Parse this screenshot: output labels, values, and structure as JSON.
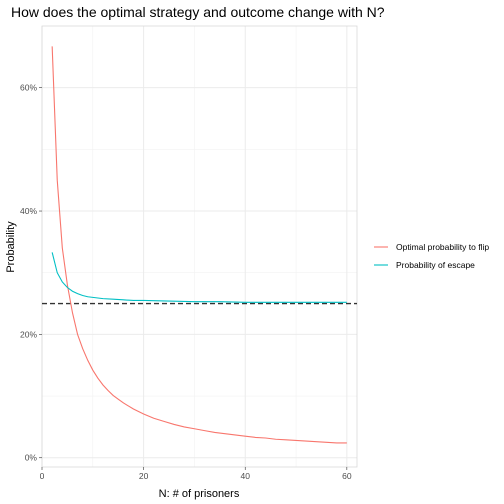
{
  "chart_data": {
    "type": "line",
    "title": "How does the optimal strategy and outcome change with N?",
    "xlabel": "N: # of prisoners",
    "ylabel": "Probability",
    "xlim": [
      0,
      62
    ],
    "ylim": [
      -0.015,
      0.7
    ],
    "x_ticks": [
      0,
      20,
      40,
      60
    ],
    "x_tick_labels": [
      "0",
      "20",
      "40",
      "60"
    ],
    "y_ticks": [
      0,
      0.2,
      0.4,
      0.6
    ],
    "y_tick_labels": [
      "0%",
      "20%",
      "40%",
      "60%"
    ],
    "grid": true,
    "legend_position": "right",
    "reference_line": {
      "y": 0.25,
      "style": "dashed",
      "color": "#333333"
    },
    "series": [
      {
        "name": "Optimal probability to flip",
        "color": "#F8766D",
        "x": [
          2,
          3,
          4,
          5,
          6,
          7,
          8,
          9,
          10,
          11,
          12,
          13,
          14,
          15,
          16,
          17,
          18,
          19,
          20,
          22,
          24,
          26,
          28,
          30,
          32,
          34,
          36,
          38,
          40,
          42,
          44,
          46,
          48,
          50,
          52,
          54,
          56,
          58,
          60
        ],
        "values": [
          0.667,
          0.45,
          0.34,
          0.28,
          0.235,
          0.2,
          0.177,
          0.158,
          0.142,
          0.129,
          0.118,
          0.109,
          0.101,
          0.095,
          0.089,
          0.084,
          0.079,
          0.075,
          0.071,
          0.064,
          0.059,
          0.054,
          0.05,
          0.047,
          0.044,
          0.041,
          0.039,
          0.037,
          0.035,
          0.033,
          0.032,
          0.03,
          0.029,
          0.028,
          0.027,
          0.026,
          0.025,
          0.024,
          0.024
        ]
      },
      {
        "name": "Probability of escape",
        "color": "#00BFC4",
        "x": [
          2,
          3,
          4,
          5,
          6,
          7,
          8,
          9,
          10,
          12,
          14,
          16,
          18,
          20,
          25,
          30,
          35,
          40,
          45,
          50,
          55,
          60
        ],
        "values": [
          0.333,
          0.3,
          0.285,
          0.276,
          0.27,
          0.266,
          0.263,
          0.261,
          0.26,
          0.258,
          0.257,
          0.256,
          0.255,
          0.255,
          0.254,
          0.253,
          0.253,
          0.252,
          0.252,
          0.252,
          0.252,
          0.252
        ]
      }
    ]
  }
}
